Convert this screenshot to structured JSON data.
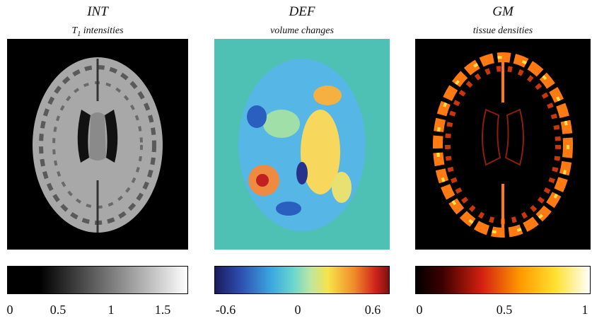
{
  "panels": [
    {
      "title": "INT",
      "subtitle_prefix": "T",
      "subtitle_sub": "1",
      "subtitle_rest": " intensities",
      "colormap": "gray",
      "colors": {
        "background": "#000000",
        "tissue": "#a8a8a8",
        "gyri_dark": "#5a5a5a",
        "ventricle": "#111111"
      },
      "ticks": [
        "0",
        "0.5",
        "1",
        "1.5"
      ]
    },
    {
      "title": "DEF",
      "subtitle": "volume changes",
      "colormap": "jet",
      "colors": {
        "background": "#4fc1b4",
        "base": "#56b6e6"
      },
      "ticks": [
        "-0.6",
        "0",
        "0.6"
      ]
    },
    {
      "title": "GM",
      "subtitle": "tissue densities",
      "colormap": "hot",
      "colors": {
        "background": "#000000",
        "cortex": "#ff7a12",
        "highlight": "#ffe14a"
      },
      "ticks": [
        "0",
        "0.5",
        "1"
      ]
    }
  ]
}
